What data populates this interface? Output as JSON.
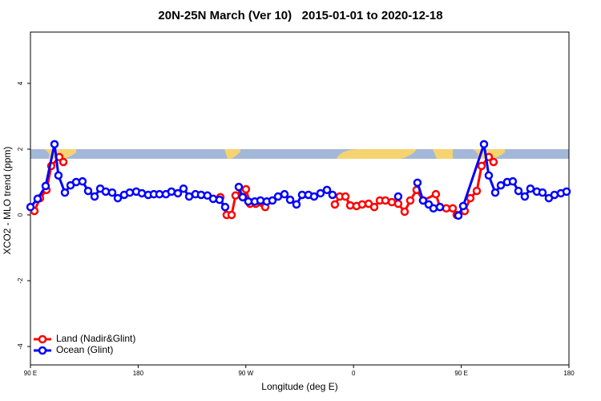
{
  "chart_data": {
    "type": "line",
    "title": "20N-25N March (Ver 10)   2015-01-01 to 2020-12-18",
    "xlabel": "Longitude (deg E)",
    "ylabel": "XCO2 - MLO trend (ppm)",
    "xlim": [
      90,
      540
    ],
    "xticks": [
      {
        "value": 90,
        "label": "90 E"
      },
      180,
      {
        "value": 270,
        "label": "90 W"
      },
      {
        "value": 360,
        "label": "0"
      },
      {
        "value": 450,
        "label": "90 E"
      },
      {
        "value": 540,
        "label": "180"
      }
    ],
    "ylim": [
      -4.56,
      5.56
    ],
    "yticks": [
      -4,
      -2,
      0,
      2,
      4
    ],
    "legend": "bottom-left",
    "series": [
      {
        "name": "Land (Nadir&Glint)",
        "color": "#ff0000",
        "x": [
          93.3,
          98.0,
          103.4,
          107.4,
          114.1,
          117.5,
          null,
          248.7,
          254.0,
          258.1,
          261.4,
          266.8,
          270.1,
          273.5,
          278.2,
          286.2,
          null,
          344.4,
          348.5,
          353.2,
          357.2,
          362.5,
          367.2,
          372.6,
          377.3,
          382.0,
          386.6,
          392.0,
          397.3,
          402.7,
          407.4,
          412.7,
          418.1,
          428.8,
          432.2,
          437.5,
          442.9,
          446.2,
          452.9,
          457.6,
          463.0,
          467.0,
          473.0,
          477.0
        ],
        "values": [
          0.12,
          0.51,
          0.76,
          1.49,
          1.76,
          1.61,
          null,
          0.54,
          0.0,
          0.0,
          0.59,
          0.68,
          0.78,
          0.34,
          0.34,
          0.24,
          null,
          0.32,
          0.56,
          0.56,
          0.29,
          0.27,
          0.32,
          0.34,
          0.24,
          0.44,
          0.44,
          0.39,
          0.34,
          0.1,
          0.44,
          0.76,
          0.44,
          0.63,
          0.24,
          0.2,
          0.2,
          0.0,
          0.12,
          0.51,
          0.73,
          1.49,
          1.76,
          1.61
        ]
      },
      {
        "name": "Ocean (Glint)",
        "color": "#0000ff",
        "x": [
          90,
          96.0,
          102.7,
          110.1,
          113.4,
          118.8,
          123.5,
          128.2,
          133.5,
          138.2,
          143.6,
          148.3,
          152.9,
          158.3,
          163.0,
          168.3,
          173.0,
          178.4,
          183.1,
          188.4,
          193.1,
          197.8,
          203.2,
          207.8,
          213.2,
          217.9,
          222.6,
          227.9,
          232.6,
          237.9,
          242.7,
          248.0,
          252.7,
          null,
          264.1,
          267.4,
          272.1,
          277.5,
          282.2,
          287.5,
          292.2,
          296.9,
          302.3,
          307.0,
          312.3,
          317.0,
          322.3,
          327.0,
          332.4,
          337.8,
          342.4,
          null,
          397.3,
          null,
          413.4,
          418.1,
          422.8,
          426.8,
          432.2,
          null,
          447.6,
          451.6,
          469.0,
          473.0,
          478.4,
          483.1,
          488.4,
          493.1,
          497.8,
          503.1,
          507.8,
          513.2,
          517.9,
          523.2,
          527.9,
          533.3,
          538.0
        ],
        "values": [
          0.24,
          0.49,
          0.88,
          2.15,
          1.2,
          0.68,
          0.9,
          1.0,
          1.02,
          0.73,
          0.56,
          0.8,
          0.71,
          0.68,
          0.51,
          0.61,
          0.68,
          0.71,
          0.66,
          0.61,
          0.63,
          0.63,
          0.63,
          0.71,
          0.66,
          0.8,
          0.56,
          0.63,
          0.61,
          0.59,
          0.49,
          0.46,
          0.24,
          null,
          0.85,
          0.54,
          0.41,
          0.41,
          0.44,
          0.41,
          0.44,
          0.56,
          0.63,
          0.46,
          0.32,
          0.61,
          0.61,
          0.56,
          0.66,
          0.76,
          0.61,
          null,
          0.56,
          null,
          0.98,
          0.44,
          0.32,
          0.2,
          0.24,
          null,
          -0.02,
          0.27,
          2.15,
          1.2,
          0.68,
          0.9,
          1.0,
          1.02,
          0.73,
          0.56,
          0.8,
          0.71,
          0.68,
          0.51,
          0.61,
          0.66,
          0.71
        ]
      }
    ]
  }
}
